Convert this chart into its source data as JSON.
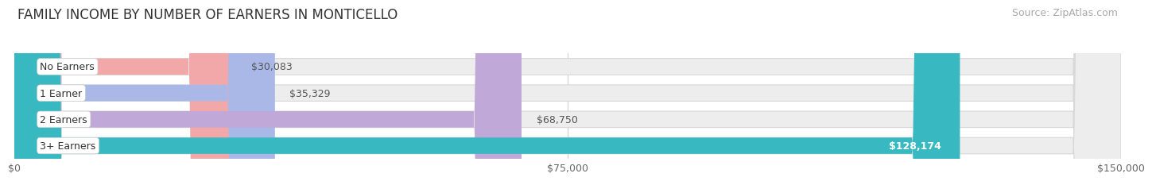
{
  "title": "FAMILY INCOME BY NUMBER OF EARNERS IN MONTICELLO",
  "source": "Source: ZipAtlas.com",
  "categories": [
    "No Earners",
    "1 Earner",
    "2 Earners",
    "3+ Earners"
  ],
  "values": [
    30083,
    35329,
    68750,
    128174
  ],
  "labels": [
    "$30,083",
    "$35,329",
    "$68,750",
    "$128,174"
  ],
  "bar_colors": [
    "#f2a8a8",
    "#aab8e8",
    "#c0a8d8",
    "#38b8c0"
  ],
  "label_colors": [
    "#555555",
    "#555555",
    "#555555",
    "#ffffff"
  ],
  "x_ticks": [
    0,
    75000,
    150000
  ],
  "x_tick_labels": [
    "$0",
    "$75,000",
    "$150,000"
  ],
  "xlim": [
    0,
    150000
  ],
  "max_display": 150000,
  "background_color": "#ffffff",
  "bar_bg_color": "#ededee",
  "bar_bg_border_color": "#d8d8d8",
  "title_fontsize": 12,
  "source_fontsize": 9,
  "label_fontsize": 9,
  "category_fontsize": 9,
  "tick_fontsize": 9
}
